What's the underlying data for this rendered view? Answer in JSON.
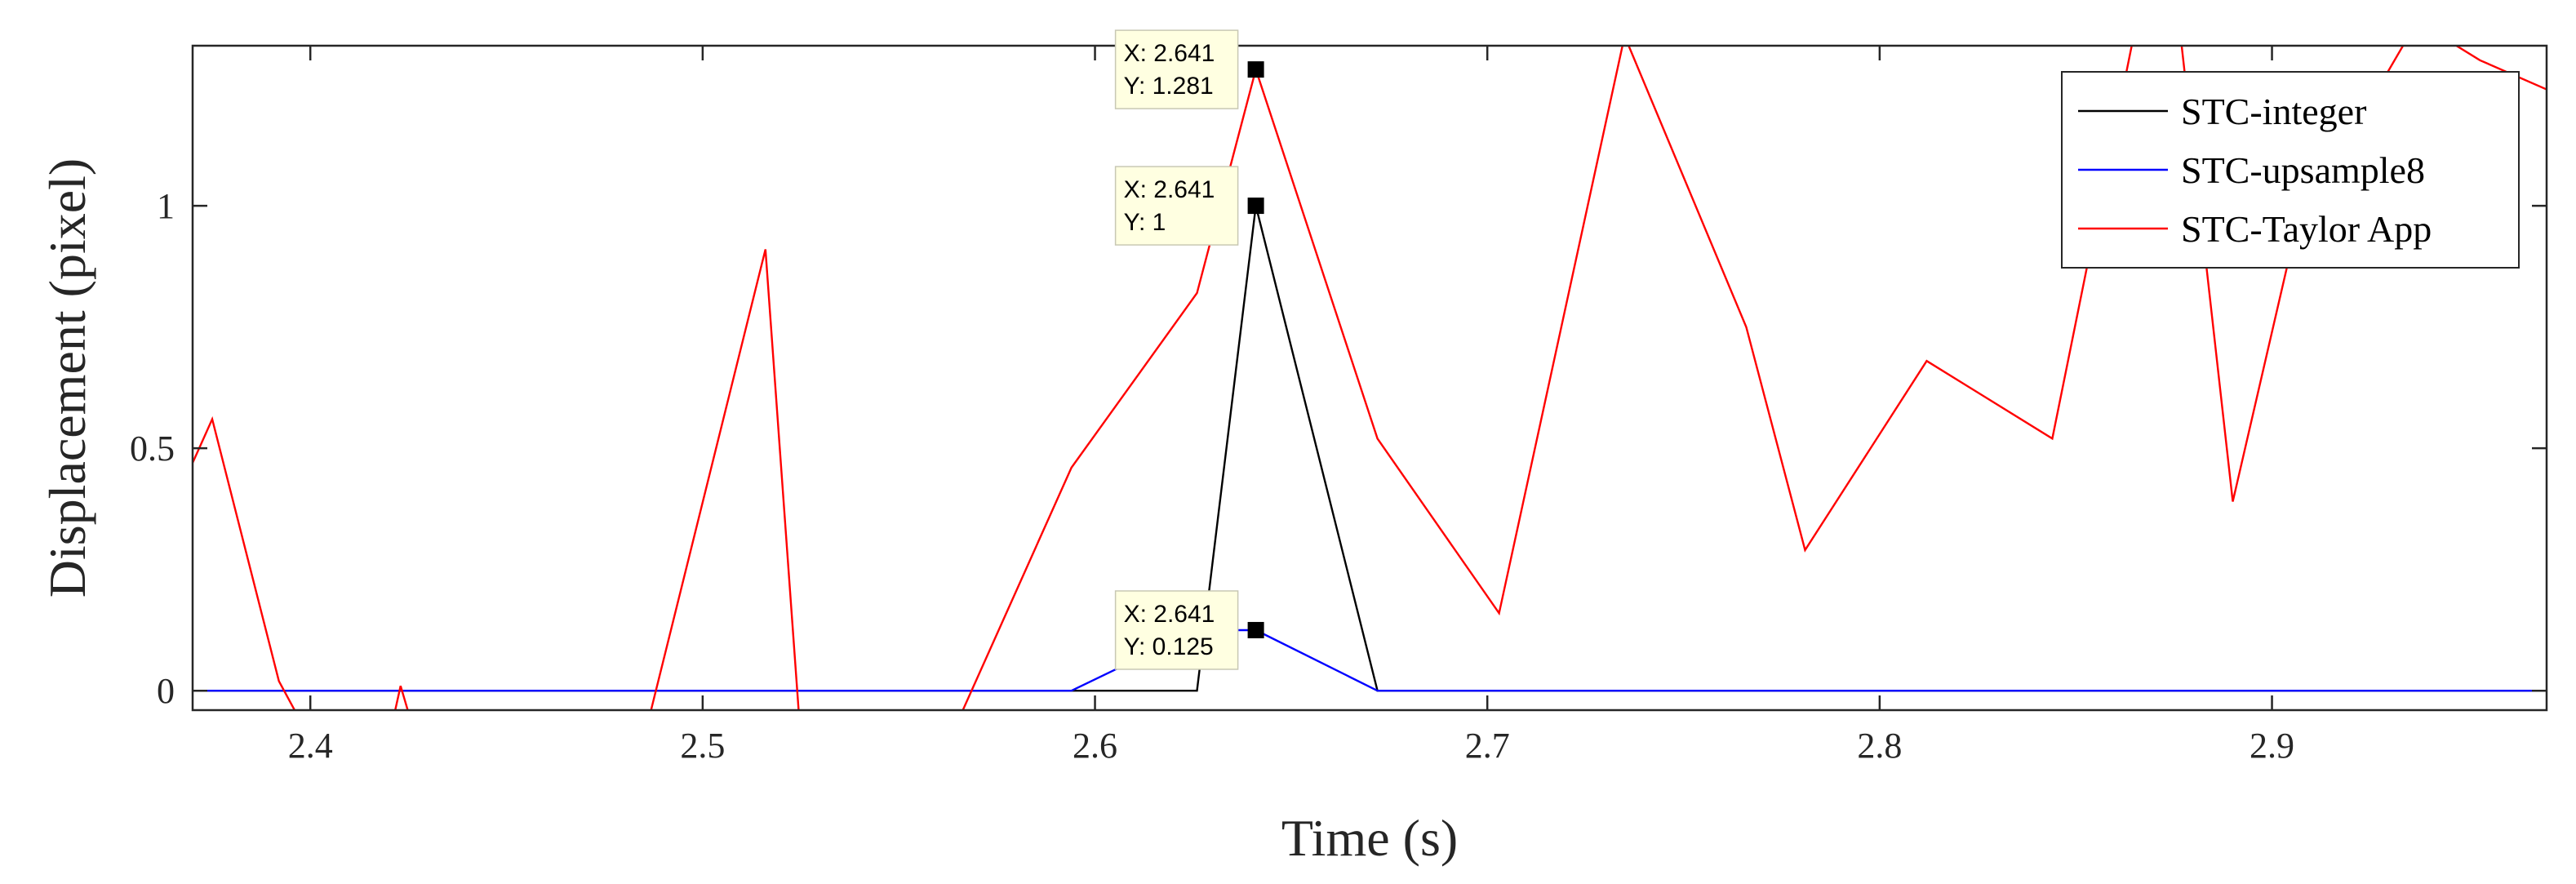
{
  "chart_data": {
    "type": "line",
    "xlabel": "Time (s)",
    "ylabel": "Displacement (pixel)",
    "xlim": [
      2.37,
      2.97
    ],
    "ylim": [
      -0.04,
      1.33
    ],
    "x_ticks": [
      2.4,
      2.5,
      2.6,
      2.7,
      2.8,
      2.9
    ],
    "x_tick_labels": [
      "2.4",
      "2.5",
      "2.6",
      "2.7",
      "2.8",
      "2.9"
    ],
    "y_ticks": [
      0,
      0.5,
      1
    ],
    "y_tick_labels": [
      "0",
      "0.5",
      "1"
    ],
    "grid": false,
    "legend_position": "top-right",
    "series": [
      {
        "name": "STC-integer",
        "color": "#000000",
        "x": [
          2.37,
          2.626,
          2.641,
          2.672,
          2.97
        ],
        "y": [
          0,
          0,
          1,
          0,
          0
        ]
      },
      {
        "name": "STC-upsample8",
        "color": "#0000ff",
        "x": [
          2.37,
          2.594,
          2.626,
          2.641,
          2.672,
          2.97
        ],
        "y": [
          0,
          0,
          0.125,
          0.125,
          0,
          0
        ]
      },
      {
        "name": "STC-Taylor App",
        "color": "#ff0000",
        "x": [
          2.37,
          2.375,
          2.392,
          2.4,
          2.42,
          2.423,
          2.427,
          2.485,
          2.516,
          2.525,
          2.533,
          2.563,
          2.594,
          2.626,
          2.641,
          2.672,
          2.703,
          2.735,
          2.766,
          2.781,
          2.812,
          2.844,
          2.866,
          2.876,
          2.89,
          2.906,
          2.937,
          2.953,
          2.97
        ],
        "y": [
          0.47,
          0.56,
          0.02,
          -0.1,
          -0.1,
          0.01,
          -0.1,
          -0.1,
          0.91,
          -0.1,
          -0.1,
          -0.1,
          0.46,
          0.82,
          1.281,
          0.52,
          0.16,
          1.35,
          0.75,
          0.29,
          0.68,
          0.52,
          1.4,
          1.4,
          0.39,
          0.95,
          1.38,
          1.3,
          1.24
        ]
      }
    ],
    "annotations": [
      {
        "x": 2.641,
        "y": 1.281,
        "lines": [
          "X: 2.641",
          "Y: 1.281"
        ]
      },
      {
        "x": 2.641,
        "y": 1,
        "lines": [
          "X: 2.641",
          "Y: 1"
        ]
      },
      {
        "x": 2.641,
        "y": 0.125,
        "lines": [
          "X: 2.641",
          "Y: 0.125"
        ]
      }
    ]
  }
}
